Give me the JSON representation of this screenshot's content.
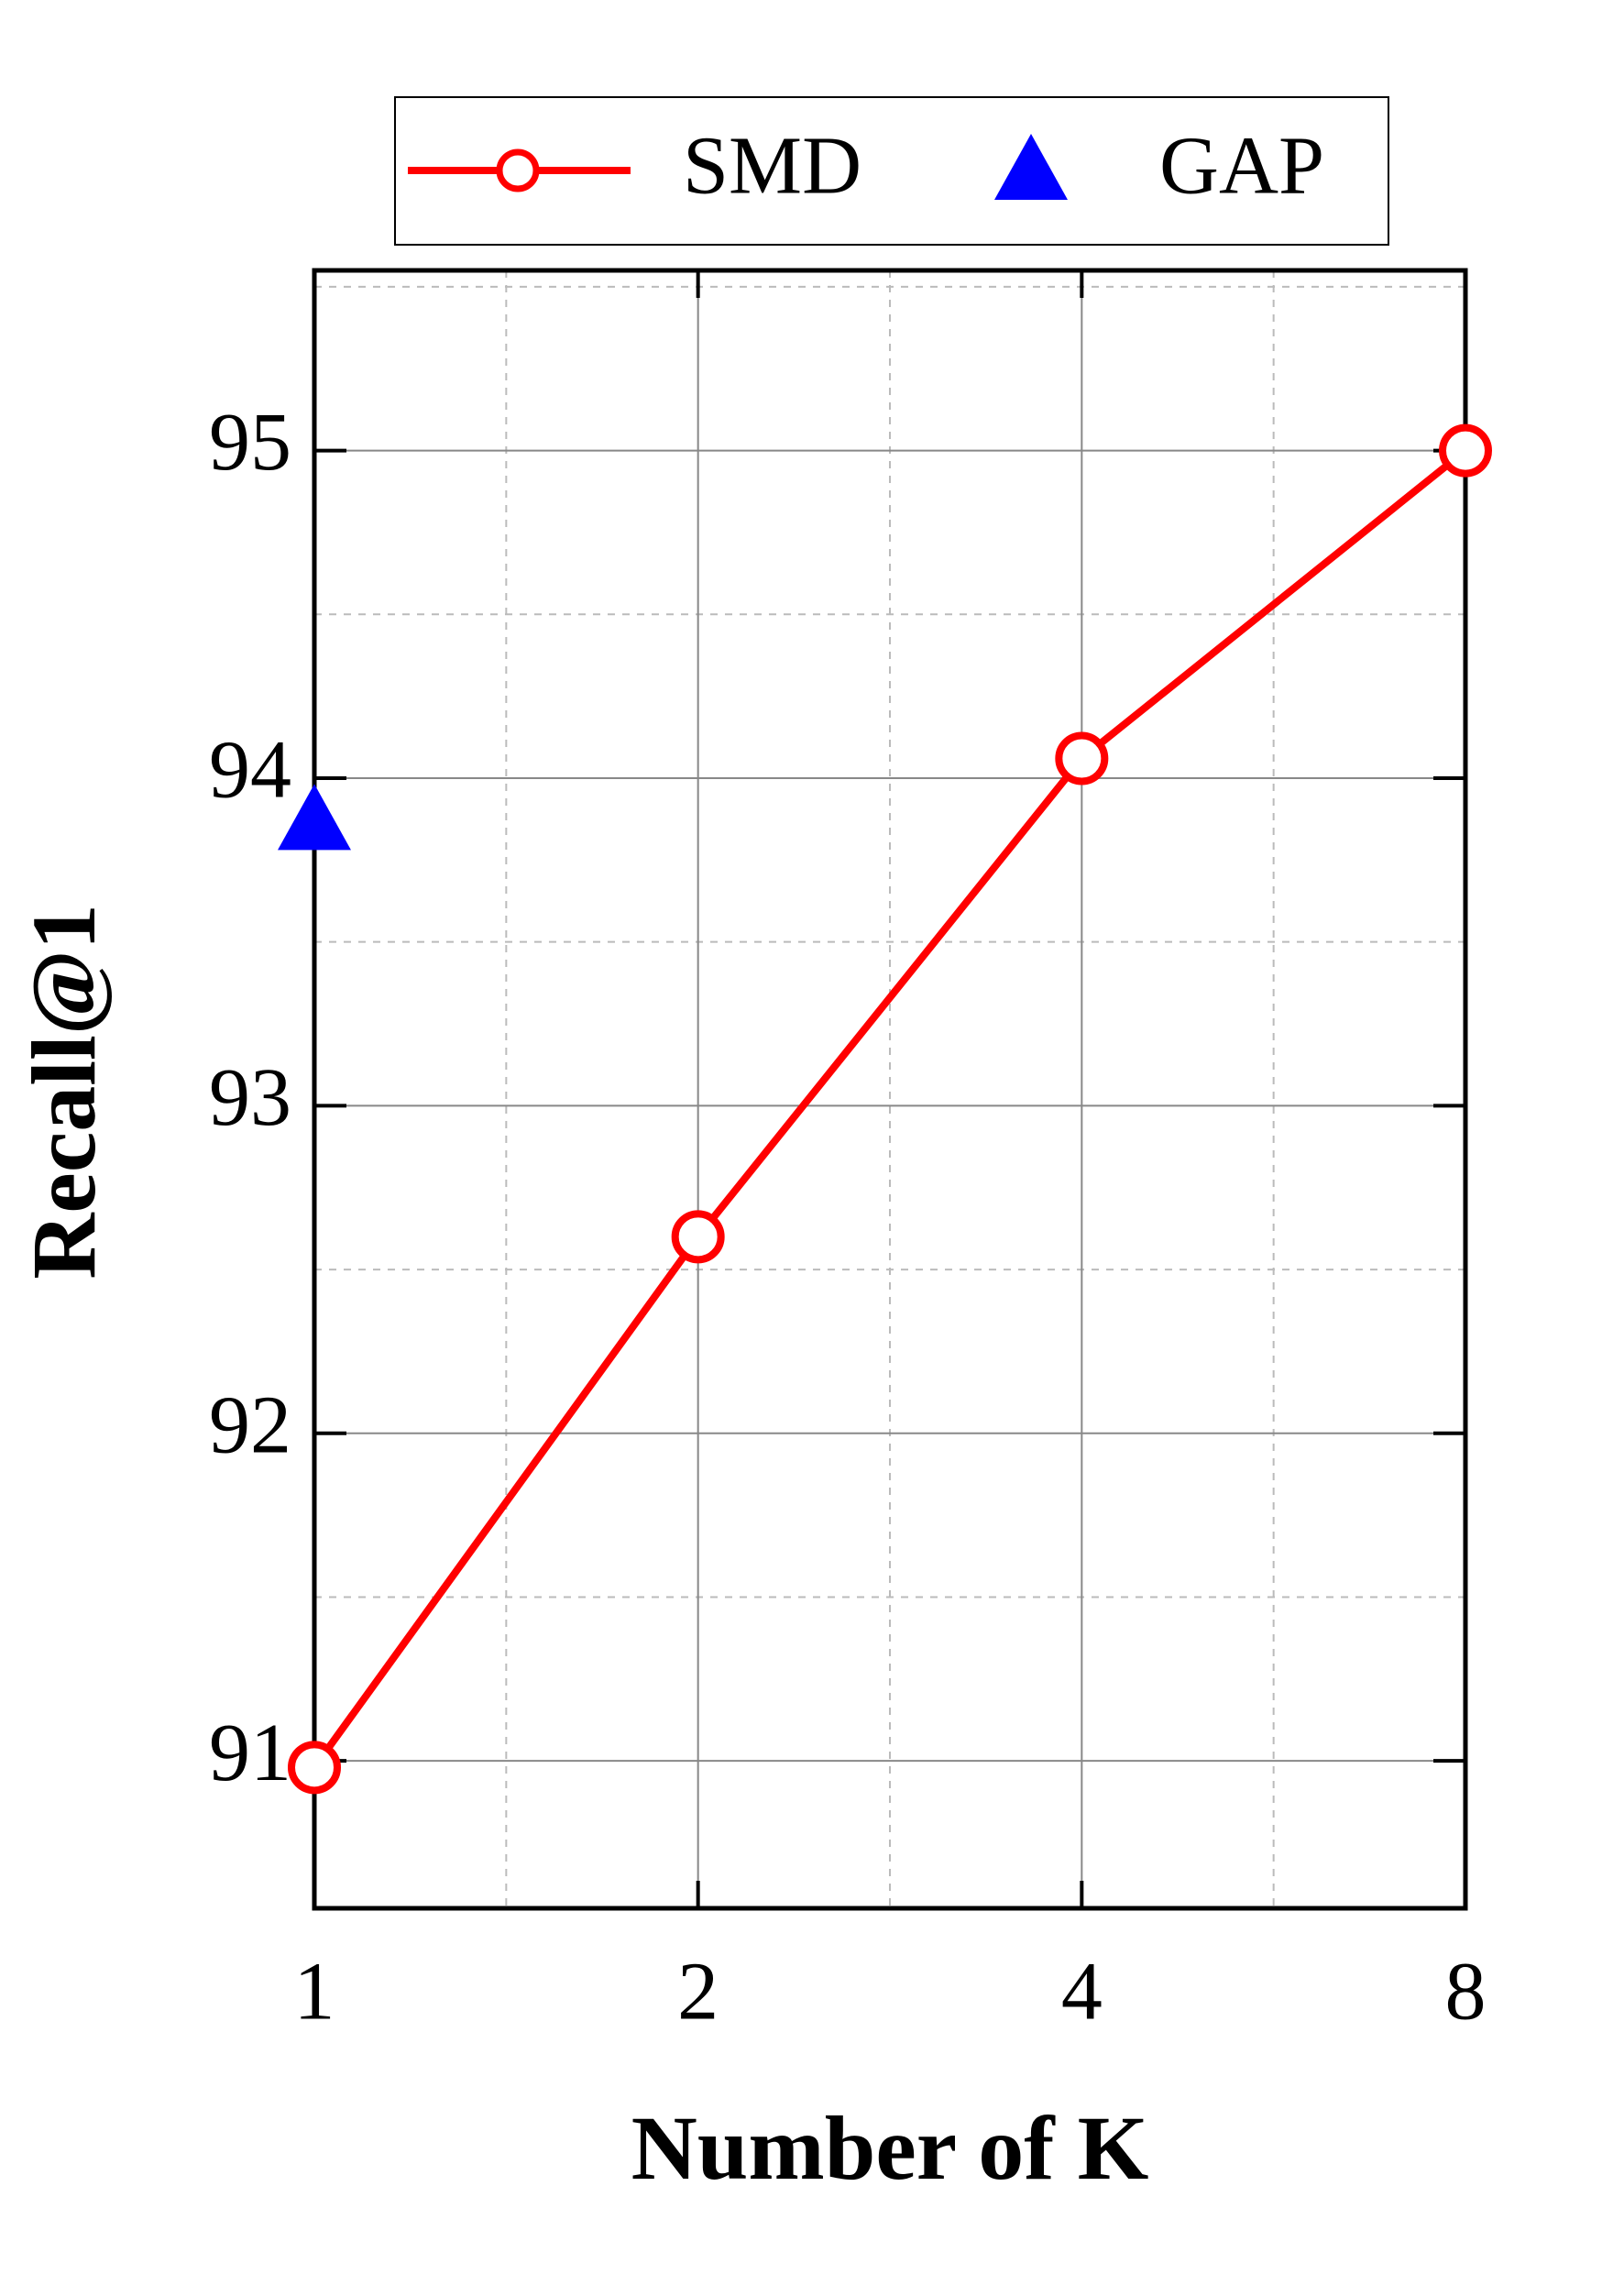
{
  "chart_data": {
    "type": "line",
    "x_label": "Number of K",
    "y_label": "Recall@1",
    "categories": [
      "1",
      "2",
      "4",
      "8"
    ],
    "series": [
      {
        "name": "SMD",
        "color": "#ff0000",
        "marker": "circle",
        "values": [
          90.98,
          92.6,
          94.06,
          95.0
        ]
      },
      {
        "name": "GAP",
        "color": "#0000ff",
        "marker": "triangle",
        "values": [
          93.87,
          null,
          null,
          null
        ]
      }
    ],
    "ylim": [
      90.55,
      95.55
    ],
    "yticks": [
      91,
      92,
      93,
      94,
      95
    ],
    "grid": true
  }
}
